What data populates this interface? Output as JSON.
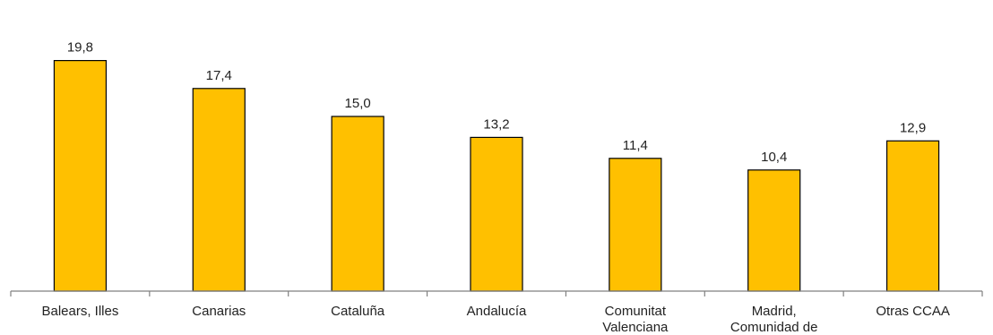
{
  "chart_data": {
    "type": "bar",
    "categories": [
      [
        "Balears, Illes"
      ],
      [
        "Canarias"
      ],
      [
        "Cataluña"
      ],
      [
        "Andalucía"
      ],
      [
        "Comunitat",
        "Valenciana"
      ],
      [
        "Madrid,",
        "Comunidad de"
      ],
      [
        "Otras CCAA"
      ]
    ],
    "values": [
      19.8,
      17.4,
      15.0,
      13.2,
      11.4,
      10.4,
      12.9
    ],
    "value_labels": [
      "19,8",
      "17,4",
      "15,0",
      "13,2",
      "11,4",
      "10,4",
      "12,9"
    ],
    "ylim": [
      0,
      22
    ],
    "grid": false,
    "bar_color": "#FFC000",
    "bar_border_color": "#000000",
    "axis_color": "#808080"
  }
}
